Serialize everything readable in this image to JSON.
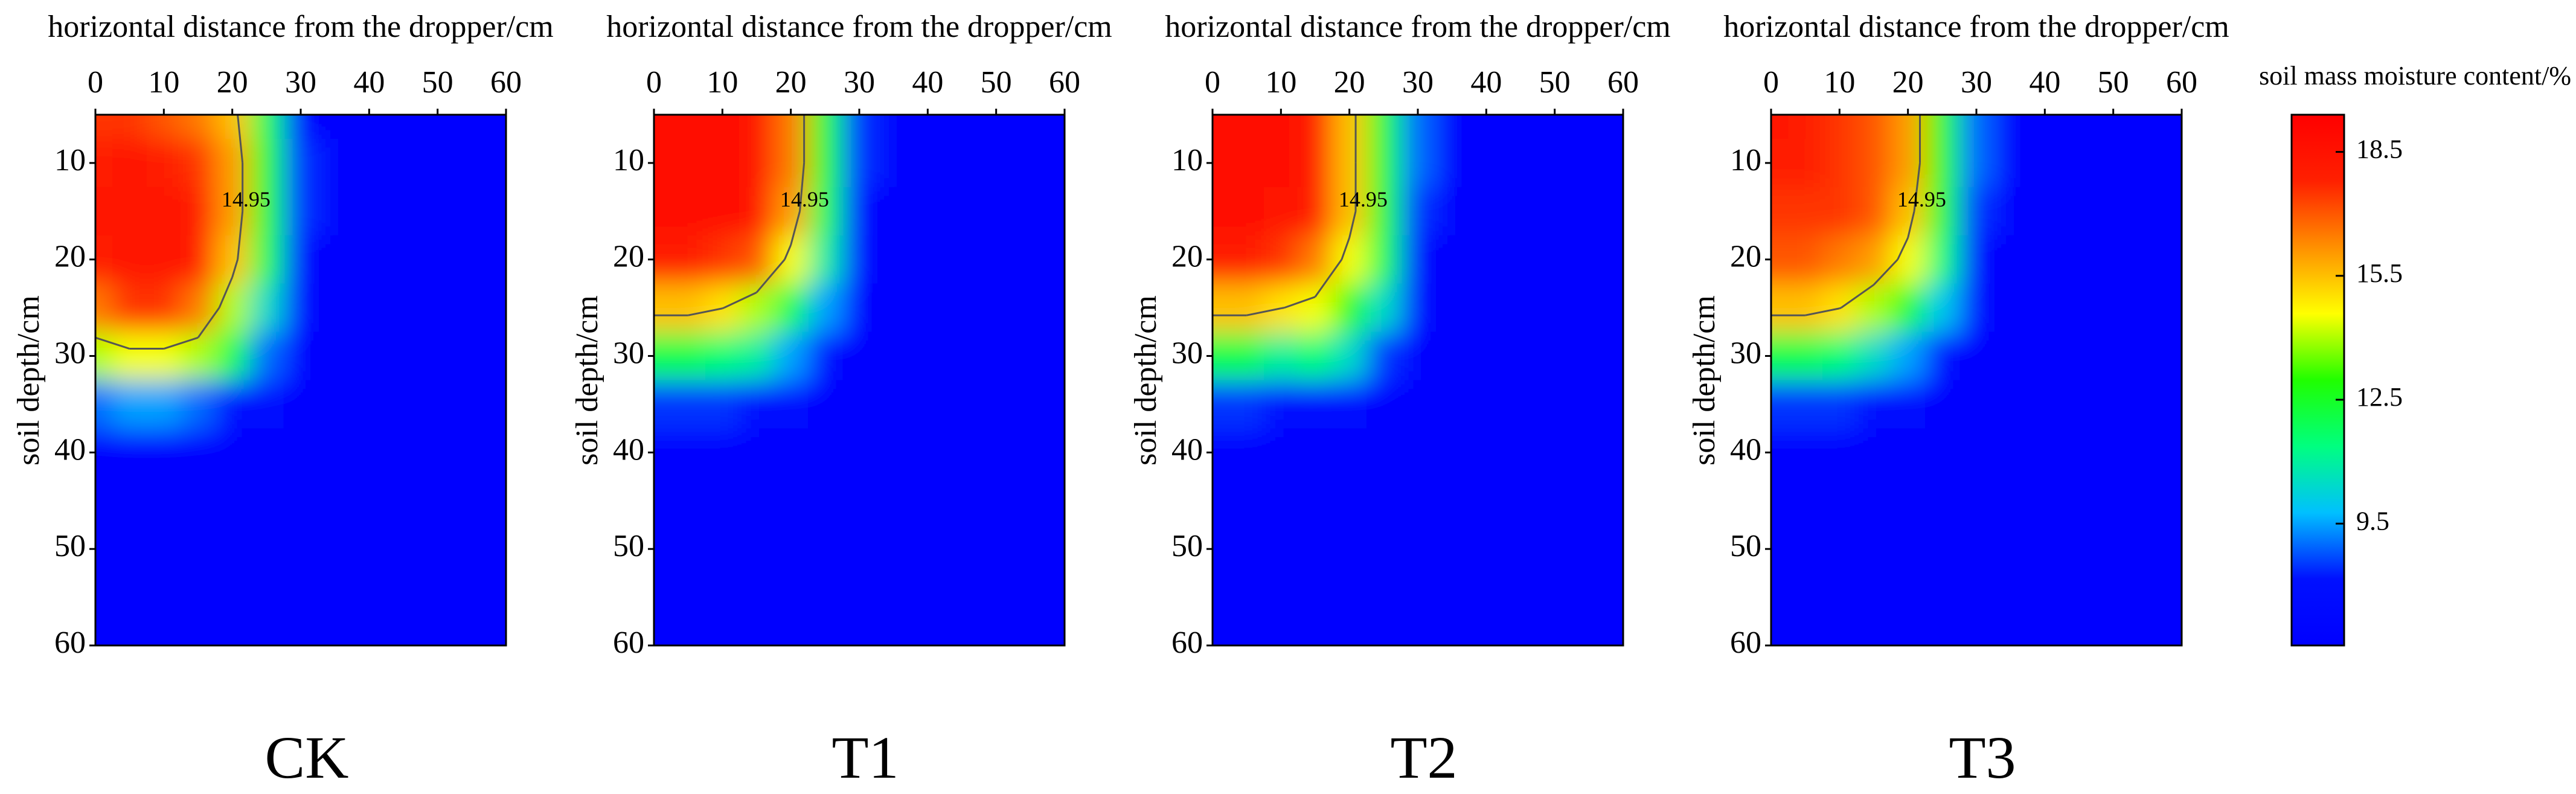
{
  "chart_data": [
    {
      "type": "contour",
      "title": "CK",
      "xlabel": "horizontal distance from the dropper/cm",
      "ylabel": "soil depth/cm",
      "x": [
        0,
        5,
        10,
        15,
        20,
        25,
        30,
        35,
        40,
        45,
        50,
        55,
        60
      ],
      "y": [
        5,
        10,
        15,
        20,
        25,
        30,
        35,
        40,
        45,
        50,
        55,
        60
      ],
      "z": [
        [
          17.5,
          17.5,
          17,
          16.5,
          15.5,
          12,
          8,
          7,
          7,
          7,
          7,
          7,
          7
        ],
        [
          18,
          18.5,
          18,
          17.5,
          16,
          12.5,
          8.5,
          7,
          7,
          7,
          7,
          7,
          7
        ],
        [
          18.5,
          18.5,
          18.5,
          18,
          16,
          12.5,
          8.5,
          7,
          7,
          7,
          7,
          7,
          7
        ],
        [
          18,
          18.5,
          18.5,
          18,
          15.5,
          12,
          8,
          7,
          7,
          7,
          7,
          7,
          7
        ],
        [
          16.5,
          17.5,
          17.5,
          16.5,
          14,
          10.5,
          7.5,
          7,
          7,
          7,
          7,
          7,
          7
        ],
        [
          14,
          14.5,
          14.5,
          14,
          12,
          9,
          7,
          7,
          7,
          7,
          7,
          7,
          7
        ],
        [
          9,
          9.5,
          9.5,
          9,
          8,
          7.5,
          7,
          7,
          7,
          7,
          7,
          7,
          7
        ],
        [
          7,
          7,
          7,
          7,
          7,
          7,
          7,
          7,
          7,
          7,
          7,
          7,
          7
        ],
        [
          7,
          7,
          7,
          7,
          7,
          7,
          7,
          7,
          7,
          7,
          7,
          7,
          7
        ],
        [
          7,
          7,
          7,
          7,
          7,
          7,
          7,
          7,
          7,
          7,
          7,
          7,
          7
        ],
        [
          7,
          7,
          7,
          7,
          7,
          7,
          7,
          7,
          7,
          7,
          7,
          7,
          7
        ],
        [
          7,
          7,
          7,
          7,
          7,
          7,
          7,
          7,
          7,
          7,
          7,
          7,
          7
        ]
      ],
      "contour_level": 14.95,
      "xlim": [
        0,
        60
      ],
      "ylim": [
        5,
        60
      ],
      "xticks": [
        0,
        10,
        20,
        30,
        40,
        50,
        60
      ],
      "yticks": [
        10,
        20,
        30,
        40,
        50,
        60
      ],
      "y_inverted": true
    },
    {
      "type": "contour",
      "title": "T1",
      "xlabel": "horizontal distance from the dropper/cm",
      "ylabel": "soil depth/cm",
      "x": [
        0,
        5,
        10,
        15,
        20,
        25,
        30,
        35,
        40,
        45,
        50,
        55,
        60
      ],
      "y": [
        5,
        10,
        15,
        20,
        25,
        30,
        35,
        40,
        45,
        50,
        55,
        60
      ],
      "z": [
        [
          19,
          19,
          19,
          18.5,
          16.5,
          12.5,
          8.5,
          7,
          7,
          7,
          7,
          7,
          7
        ],
        [
          19,
          19,
          19,
          18.5,
          16.5,
          12.5,
          8.5,
          7,
          7,
          7,
          7,
          7,
          7
        ],
        [
          19,
          19,
          19,
          18.5,
          16,
          12,
          8,
          7,
          7,
          7,
          7,
          7,
          7
        ],
        [
          18,
          18,
          17.5,
          17,
          14.5,
          11,
          7.5,
          7,
          7,
          7,
          7,
          7,
          7
        ],
        [
          15.5,
          15.5,
          15,
          14,
          12,
          9.5,
          7,
          7,
          7,
          7,
          7,
          7,
          7
        ],
        [
          12,
          12,
          11.5,
          11,
          9.5,
          8,
          7,
          7,
          7,
          7,
          7,
          7,
          7
        ],
        [
          8.5,
          8.5,
          8.5,
          8,
          7.5,
          7,
          7,
          7,
          7,
          7,
          7,
          7,
          7
        ],
        [
          7,
          7,
          7,
          7,
          7,
          7,
          7,
          7,
          7,
          7,
          7,
          7,
          7
        ],
        [
          7,
          7,
          7,
          7,
          7,
          7,
          7,
          7,
          7,
          7,
          7,
          7,
          7
        ],
        [
          7,
          7,
          7,
          7,
          7,
          7,
          7,
          7,
          7,
          7,
          7,
          7,
          7
        ],
        [
          7,
          7,
          7,
          7,
          7,
          7,
          7,
          7,
          7,
          7,
          7,
          7,
          7
        ],
        [
          7,
          7,
          7,
          7,
          7,
          7,
          7,
          7,
          7,
          7,
          7,
          7,
          7
        ]
      ],
      "contour_level": 14.95,
      "xlim": [
        0,
        60
      ],
      "ylim": [
        5,
        60
      ],
      "xticks": [
        0,
        10,
        20,
        30,
        40,
        50,
        60
      ],
      "yticks": [
        10,
        20,
        30,
        40,
        50,
        60
      ],
      "y_inverted": true
    },
    {
      "type": "contour",
      "title": "T2",
      "xlabel": "horizontal distance from the dropper/cm",
      "ylabel": "soil depth/cm",
      "x": [
        0,
        5,
        10,
        15,
        20,
        25,
        30,
        35,
        40,
        45,
        50,
        55,
        60
      ],
      "y": [
        5,
        10,
        15,
        20,
        25,
        30,
        35,
        40,
        45,
        50,
        55,
        60
      ],
      "z": [
        [
          19,
          19,
          19,
          18,
          15.5,
          12.5,
          9,
          7,
          7,
          7,
          7,
          7,
          7
        ],
        [
          19,
          19,
          19,
          18,
          15.5,
          12.5,
          9,
          7,
          7,
          7,
          7,
          7,
          7
        ],
        [
          19,
          19,
          18.5,
          18,
          15.5,
          12.5,
          8.5,
          7,
          7,
          7,
          7,
          7,
          7
        ],
        [
          18,
          18,
          17.5,
          16.5,
          14.5,
          12,
          8,
          7,
          7,
          7,
          7,
          7,
          7
        ],
        [
          15.5,
          15.5,
          15,
          14.5,
          13,
          10.5,
          7.5,
          7,
          7,
          7,
          7,
          7,
          7
        ],
        [
          12,
          12,
          11,
          11.5,
          10.5,
          8.5,
          7,
          7,
          7,
          7,
          7,
          7,
          7
        ],
        [
          8.5,
          8.5,
          8,
          8,
          7.5,
          7,
          7,
          7,
          7,
          7,
          7,
          7,
          7
        ],
        [
          7,
          7,
          7,
          7,
          7,
          7,
          7,
          7,
          7,
          7,
          7,
          7,
          7
        ],
        [
          7,
          7,
          7,
          7,
          7,
          7,
          7,
          7,
          7,
          7,
          7,
          7,
          7
        ],
        [
          7,
          7,
          7,
          7,
          7,
          7,
          7,
          7,
          7,
          7,
          7,
          7,
          7
        ],
        [
          7,
          7,
          7,
          7,
          7,
          7,
          7,
          7,
          7,
          7,
          7,
          7,
          7
        ],
        [
          7,
          7,
          7,
          7,
          7,
          7,
          7,
          7,
          7,
          7,
          7,
          7,
          7
        ]
      ],
      "contour_level": 14.95,
      "xlim": [
        0,
        60
      ],
      "ylim": [
        5,
        60
      ],
      "xticks": [
        0,
        10,
        20,
        30,
        40,
        50,
        60
      ],
      "yticks": [
        10,
        20,
        30,
        40,
        50,
        60
      ],
      "y_inverted": true
    },
    {
      "type": "contour",
      "title": "T3",
      "xlabel": "horizontal distance from the dropper/cm",
      "ylabel": "soil depth/cm",
      "x": [
        0,
        5,
        10,
        15,
        20,
        25,
        30,
        35,
        40,
        45,
        50,
        55,
        60
      ],
      "y": [
        5,
        10,
        15,
        20,
        25,
        30,
        35,
        40,
        45,
        50,
        55,
        60
      ],
      "z": [
        [
          18.5,
          18,
          17.5,
          17,
          16,
          13,
          9,
          7,
          7,
          7,
          7,
          7,
          7
        ],
        [
          18,
          18,
          17.5,
          17,
          16,
          13,
          9,
          7,
          7,
          7,
          7,
          7,
          7
        ],
        [
          17.5,
          17.5,
          17.5,
          17,
          15.5,
          12.5,
          8.5,
          7,
          7,
          7,
          7,
          7,
          7
        ],
        [
          17,
          17,
          16.5,
          16,
          14.5,
          11.5,
          8,
          7,
          7,
          7,
          7,
          7,
          7
        ],
        [
          15.5,
          15.5,
          15,
          14,
          12.5,
          10,
          7.5,
          7,
          7,
          7,
          7,
          7,
          7
        ],
        [
          12,
          12,
          11.5,
          10.5,
          9.5,
          8,
          7,
          7,
          7,
          7,
          7,
          7,
          7
        ],
        [
          8.5,
          8.5,
          8.5,
          8,
          7.5,
          7,
          7,
          7,
          7,
          7,
          7,
          7,
          7
        ],
        [
          7,
          7,
          7,
          7,
          7,
          7,
          7,
          7,
          7,
          7,
          7,
          7,
          7
        ],
        [
          7,
          7,
          7,
          7,
          7,
          7,
          7,
          7,
          7,
          7,
          7,
          7,
          7
        ],
        [
          7,
          7,
          7,
          7,
          7,
          7,
          7,
          7,
          7,
          7,
          7,
          7,
          7
        ],
        [
          7,
          7,
          7,
          7,
          7,
          7,
          7,
          7,
          7,
          7,
          7,
          7,
          7
        ],
        [
          7,
          7,
          7,
          7,
          7,
          7,
          7,
          7,
          7,
          7,
          7,
          7,
          7
        ]
      ],
      "contour_level": 14.95,
      "xlim": [
        0,
        60
      ],
      "ylim": [
        5,
        60
      ],
      "xticks": [
        0,
        10,
        20,
        30,
        40,
        50,
        60
      ],
      "yticks": [
        10,
        20,
        30,
        40,
        50,
        60
      ],
      "y_inverted": true
    }
  ],
  "colorbar": {
    "title": "soil mass moisture content/%",
    "clim": [
      6.55,
      19.4
    ],
    "ticks": [
      9.5,
      12.5,
      15.5,
      18.5
    ],
    "colormap": [
      "#0000ff",
      "#0010ff",
      "#00c0ff",
      "#00ff80",
      "#20ff00",
      "#ffff00",
      "#ff9000",
      "#ff2000",
      "#ff0000"
    ]
  }
}
